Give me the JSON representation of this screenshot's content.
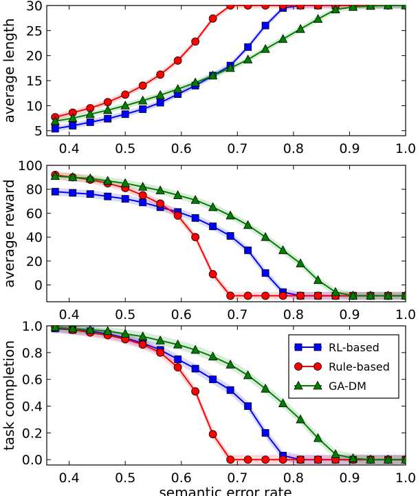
{
  "xlabel": "semantic error rate",
  "x": [
    0.375,
    0.40625,
    0.4375,
    0.46875,
    0.5,
    0.53125,
    0.5625,
    0.59375,
    0.625,
    0.65625,
    0.6875,
    0.71875,
    0.75,
    0.78125,
    0.8125,
    0.84375,
    0.875,
    0.90625,
    0.9375,
    0.96875,
    1.0
  ],
  "xlim": [
    0.36,
    1.0
  ],
  "xticks": [
    "0.4",
    "0.5",
    "0.6",
    "0.7",
    "0.8",
    "0.9",
    "1.0"
  ],
  "colors": {
    "RL-based": "#0000ff",
    "Rule-based": "#ff0000",
    "GA-DM": "#008000"
  },
  "legend": {
    "placement": "top-right",
    "panel": 2
  },
  "chart_data": [
    {
      "type": "line",
      "title": "",
      "ylabel": "average length",
      "ylim": [
        4,
        30
      ],
      "yticks": [
        "5",
        "10",
        "15",
        "20",
        "25",
        "30"
      ],
      "grid": false,
      "series": [
        {
          "name": "RL-based",
          "values": [
            5.4,
            6.0,
            6.7,
            7.4,
            8.3,
            9.3,
            10.6,
            12.3,
            14.0,
            16.0,
            18.0,
            21.7,
            26.0,
            29.5,
            30.0,
            30.0,
            30.0,
            30.0,
            30.0,
            30.0,
            30.0
          ]
        },
        {
          "name": "Rule-based",
          "values": [
            7.7,
            8.6,
            9.5,
            10.7,
            12.2,
            14.0,
            16.2,
            19.0,
            22.8,
            27.4,
            30.0,
            30.0,
            30.0,
            30.0,
            30.0,
            30.0,
            30.0,
            30.0,
            30.0,
            30.0,
            30.0
          ]
        },
        {
          "name": "GA-DM",
          "values": [
            6.9,
            7.5,
            8.3,
            9.1,
            10.0,
            11.0,
            12.1,
            13.3,
            14.6,
            16.0,
            17.5,
            19.2,
            21.3,
            23.3,
            25.3,
            27.3,
            29.2,
            29.7,
            29.9,
            30.0,
            30.0
          ]
        }
      ]
    },
    {
      "type": "line",
      "title": "",
      "ylabel": "average reward",
      "ylim": [
        -14,
        100
      ],
      "yticks": [
        "0",
        "20",
        "40",
        "60",
        "80",
        "100"
      ],
      "grid": false,
      "series": [
        {
          "name": "RL-based",
          "values": [
            78,
            77,
            76,
            74,
            72,
            69,
            65,
            61,
            56,
            49,
            41,
            29,
            10,
            -6,
            -9,
            -9,
            -9,
            -9,
            -9,
            -9,
            -9
          ]
        },
        {
          "name": "Rule-based",
          "values": [
            92,
            90,
            88,
            85,
            81,
            75,
            68,
            58,
            40,
            9,
            -9,
            -9,
            -9,
            -9,
            -9,
            -9,
            -9,
            -9,
            -9,
            -9,
            -9
          ]
        },
        {
          "name": "GA-DM",
          "values": [
            91,
            90,
            89,
            87,
            85,
            82,
            79,
            75,
            71,
            65,
            58,
            50,
            40,
            29,
            18,
            4,
            -6,
            -9,
            -9,
            -9,
            -9
          ]
        }
      ]
    },
    {
      "type": "line",
      "title": "",
      "ylabel": "task completion",
      "ylim": [
        -0.04,
        1.0
      ],
      "yticks": [
        "0.0",
        "0.2",
        "0.4",
        "0.6",
        "0.8",
        "1.0"
      ],
      "grid": false,
      "series": [
        {
          "name": "RL-based",
          "values": [
            0.98,
            0.97,
            0.96,
            0.94,
            0.91,
            0.87,
            0.82,
            0.75,
            0.68,
            0.6,
            0.52,
            0.4,
            0.2,
            0.03,
            0.0,
            0.0,
            0.0,
            0.0,
            0.0,
            0.0,
            0.0
          ]
        },
        {
          "name": "Rule-based",
          "values": [
            0.99,
            0.97,
            0.95,
            0.93,
            0.9,
            0.86,
            0.8,
            0.69,
            0.51,
            0.19,
            0.0,
            0.0,
            0.0,
            0.0,
            0.0,
            0.0,
            0.0,
            0.0,
            0.0,
            0.0,
            0.0
          ]
        },
        {
          "name": "GA-DM",
          "values": [
            0.99,
            0.98,
            0.97,
            0.96,
            0.94,
            0.92,
            0.89,
            0.86,
            0.82,
            0.77,
            0.71,
            0.63,
            0.53,
            0.42,
            0.3,
            0.16,
            0.04,
            0.01,
            0.0,
            0.0,
            0.0
          ]
        }
      ]
    }
  ]
}
